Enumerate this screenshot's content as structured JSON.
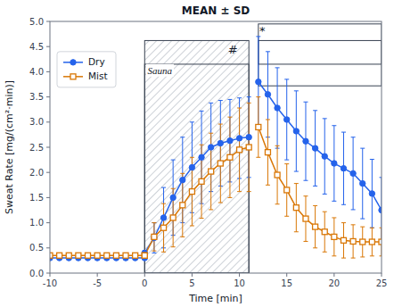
{
  "chart_data": {
    "type": "line",
    "title": "MEAN ± SD",
    "xlabel": "Time [min]",
    "ylabel": "Sweat Rate [mg/(cm²·min)]",
    "xlim": [
      -10,
      25
    ],
    "ylim": [
      0.0,
      5.0
    ],
    "xticks": [
      -10,
      -5,
      0,
      5,
      10,
      15,
      20,
      25
    ],
    "yticks": [
      {
        "value": 0.0,
        "label": "0.0"
      },
      0.5,
      {
        "value": 1.0,
        "label": "1.0"
      },
      1.5,
      {
        "value": 2.0,
        "label": "2.0"
      },
      2.5,
      {
        "value": 3.0,
        "label": "3.0"
      },
      3.5,
      {
        "value": 4.0,
        "label": "4.0"
      },
      4.5,
      {
        "value": 5.0,
        "label": "5.0"
      }
    ],
    "grid": false,
    "legend": "upper left",
    "x": [
      -10,
      -9,
      -8,
      -7,
      -6,
      -5,
      -4,
      -3,
      -2,
      -1,
      0,
      null,
      0,
      1,
      2,
      3,
      4,
      5,
      6,
      7,
      8,
      9,
      10,
      11,
      null,
      12,
      13,
      14,
      15,
      16,
      17,
      18,
      19,
      20,
      21,
      22,
      23,
      24,
      25
    ],
    "series": [
      {
        "name": "Dry",
        "color": "#2563eb",
        "marker": "circle",
        "values": [
          0.3,
          0.3,
          0.3,
          0.3,
          0.3,
          0.3,
          0.3,
          0.3,
          0.3,
          0.3,
          0.3,
          null,
          0.4,
          0.7,
          1.1,
          1.5,
          1.85,
          2.1,
          2.3,
          2.5,
          2.58,
          2.63,
          2.68,
          2.7,
          null,
          3.8,
          3.55,
          3.28,
          3.05,
          2.82,
          2.62,
          2.48,
          2.32,
          2.18,
          2.08,
          1.98,
          1.78,
          1.58,
          1.25
        ],
        "errors": [
          null,
          null,
          null,
          null,
          null,
          null,
          null,
          null,
          null,
          null,
          null,
          null,
          0.05,
          0.3,
          0.6,
          0.75,
          0.85,
          0.9,
          0.92,
          0.88,
          0.85,
          0.82,
          0.8,
          0.8,
          null,
          0.9,
          0.85,
          0.8,
          0.8,
          0.8,
          0.78,
          0.75,
          0.75,
          0.75,
          0.72,
          0.72,
          0.7,
          0.68,
          0.65
        ]
      },
      {
        "name": "Mist",
        "color": "#d97706",
        "marker": "square",
        "values": [
          0.35,
          0.35,
          0.35,
          0.35,
          0.35,
          0.35,
          0.35,
          0.35,
          0.35,
          0.35,
          0.35,
          null,
          0.35,
          0.72,
          0.9,
          1.1,
          1.35,
          1.62,
          1.82,
          2.02,
          2.18,
          2.3,
          2.45,
          2.5,
          null,
          2.9,
          2.4,
          1.95,
          1.65,
          1.3,
          1.08,
          0.92,
          0.82,
          0.72,
          0.65,
          0.63,
          0.62,
          0.62,
          0.62
        ],
        "errors": [
          null,
          null,
          null,
          null,
          null,
          null,
          null,
          null,
          null,
          null,
          null,
          null,
          0.05,
          0.28,
          0.48,
          0.58,
          0.63,
          0.68,
          0.73,
          0.76,
          0.78,
          0.8,
          0.83,
          0.88,
          null,
          0.6,
          0.65,
          0.58,
          0.52,
          0.48,
          0.45,
          0.42,
          0.4,
          0.38,
          0.35,
          0.33,
          0.3,
          0.28,
          0.28
        ]
      }
    ],
    "regions": [
      {
        "x": [
          0,
          11
        ],
        "y": [
          0,
          4.62
        ],
        "hatch": true
      },
      {
        "x": [
          0,
          11
        ],
        "y": [
          0,
          4.15
        ]
      },
      {
        "x": [
          12,
          25
        ],
        "y": [
          4.15,
          4.95
        ]
      },
      {
        "x": [
          12,
          25
        ],
        "y": [
          3.72,
          4.62
        ]
      }
    ],
    "annotations": [
      {
        "text": "Sauna",
        "x": 0.3,
        "y": 4.1
      },
      {
        "text": "#",
        "x": 8.8,
        "y": 4.54
      },
      {
        "text": "*",
        "x": 12.1,
        "y": 4.9
      }
    ]
  }
}
